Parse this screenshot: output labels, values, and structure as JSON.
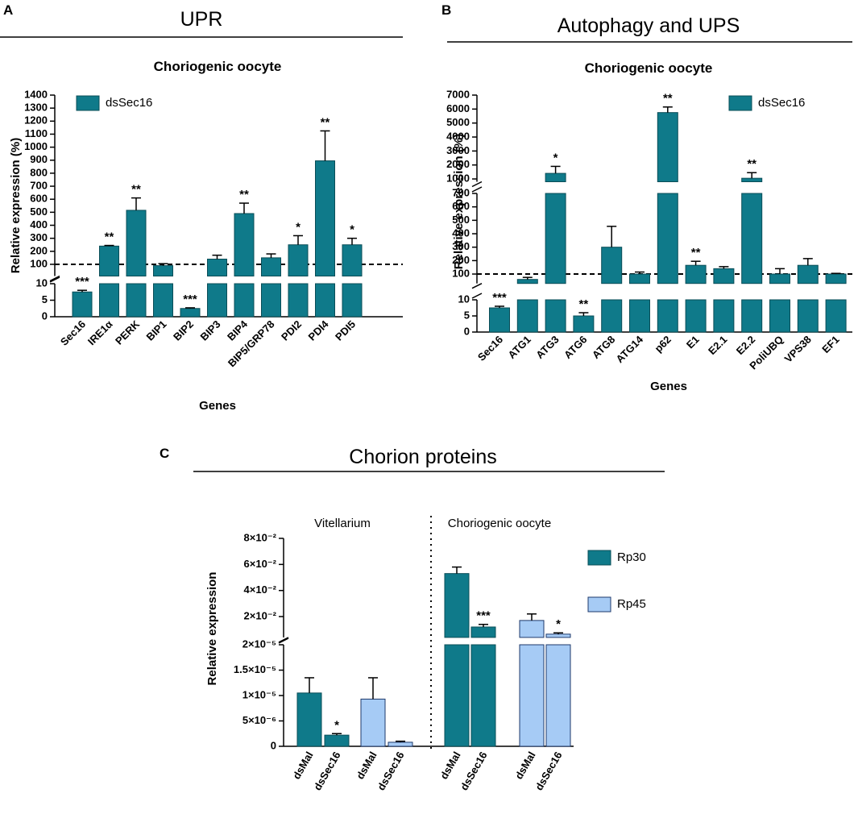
{
  "chart_data": [
    {
      "type": "bar",
      "panel_label": "A",
      "header": "UPR",
      "title": "Choriogenic oocyte",
      "ylabel": "Relative expression (%)",
      "xlabel": "Genes",
      "categories": [
        "Sec16",
        "IRE1α",
        "PERK",
        "BIP1",
        "BIP2",
        "BIP3",
        "BIP4",
        "BIP5/GRP78",
        "PDI2",
        "PDI4",
        "PDI5"
      ],
      "series": [
        {
          "name": "dsSec16",
          "color": "#0f7a8a",
          "values": [
            7.5,
            240,
            515,
            90,
            2.5,
            140,
            490,
            150,
            250,
            895,
            250
          ],
          "errors": [
            0.5,
            5,
            95,
            15,
            0.2,
            30,
            80,
            30,
            70,
            230,
            50
          ]
        }
      ],
      "significance": [
        [
          "***",
          "**",
          "**",
          null,
          "***",
          null,
          "**",
          null,
          "*",
          "**",
          "*"
        ]
      ],
      "axis_segments": [
        {
          "ylim": [
            0,
            10
          ],
          "yticks": [
            0,
            5,
            10
          ]
        },
        {
          "ylim": [
            10,
            1400
          ],
          "yticks": [
            100,
            200,
            300,
            400,
            500,
            600,
            700,
            800,
            900,
            1000,
            1100,
            1200,
            1300,
            1400
          ]
        }
      ],
      "reference_line": 100
    },
    {
      "type": "bar",
      "panel_label": "B",
      "header": "Autophagy and UPS",
      "title": "Choriogenic oocyte",
      "ylabel": "Relative expression (%)",
      "xlabel": "Genes",
      "categories": [
        "Sec16",
        "ATG1",
        "ATG3",
        "ATG6",
        "ATG8",
        "ATG14",
        "p62",
        "E1",
        "E2.1",
        "E2.2",
        "PoliUBQ",
        "VPS38",
        "EF1"
      ],
      "series": [
        {
          "name": "dsSec16",
          "color": "#0f7a8a",
          "values": [
            7.5,
            60,
            1400,
            5,
            300,
            100,
            5750,
            165,
            140,
            1050,
            100,
            165,
            100
          ],
          "errors": [
            0.5,
            15,
            500,
            1,
            155,
            15,
            400,
            30,
            15,
            400,
            40,
            50,
            5
          ]
        }
      ],
      "significance": [
        [
          "***",
          null,
          "*",
          "**",
          null,
          null,
          "**",
          "**",
          null,
          "**",
          null,
          null,
          null
        ]
      ],
      "axis_segments": [
        {
          "ylim": [
            0,
            10
          ],
          "yticks": [
            0,
            5,
            10
          ]
        },
        {
          "ylim": [
            30,
            700
          ],
          "yticks": [
            100,
            200,
            300,
            400,
            500,
            600,
            700
          ]
        },
        {
          "ylim": [
            800,
            7000
          ],
          "yticks": [
            1000,
            2000,
            3000,
            4000,
            5000,
            6000,
            7000
          ]
        }
      ],
      "reference_line": 100
    },
    {
      "type": "bar",
      "panel_label": "C",
      "header": "Chorion proteins",
      "ylabel": "Relative expression",
      "regions": [
        "Vitellarium",
        "Choriogenic oocyte"
      ],
      "categories": [
        "dsMal",
        "dsSec16",
        "dsMal",
        "dsSec16",
        "dsMal",
        "dsSec16",
        "dsMal",
        "dsSec16"
      ],
      "series": [
        {
          "name": "Rp30",
          "color": "#0f7a8a",
          "values": [
            1.05e-05,
            2.2e-06,
            null,
            null,
            0.053,
            0.012,
            null,
            null
          ],
          "errors": [
            3e-06,
            3e-07,
            null,
            null,
            0.005,
            0.002,
            null,
            null
          ]
        },
        {
          "name": "Rp45",
          "color": "#a6cbf5",
          "values": [
            null,
            null,
            9.3e-06,
            8e-07,
            null,
            null,
            0.017,
            0.0065
          ],
          "errors": [
            null,
            null,
            4.2e-06,
            2e-07,
            null,
            null,
            0.005,
            0.001
          ]
        }
      ],
      "significance": [
        [
          null,
          "*",
          null,
          null,
          null,
          "***",
          null,
          null
        ],
        [
          null,
          null,
          null,
          null,
          null,
          null,
          null,
          "*"
        ]
      ],
      "axis_segments": [
        {
          "ylim": [
            0,
            2e-05
          ],
          "yticks": [
            0,
            {
              "value": 5e-06,
              "label": "5×10⁻⁶"
            },
            {
              "value": 1e-05,
              "label": "1×10⁻⁵"
            },
            {
              "value": 1.5e-05,
              "label": "1.5×10⁻⁵"
            },
            {
              "value": 2e-05,
              "label": "2×10⁻⁵"
            }
          ]
        },
        {
          "ylim": [
            0.004,
            0.08
          ],
          "yticks": [
            {
              "value": 0.02,
              "label": "2×10⁻²"
            },
            {
              "value": 0.04,
              "label": "4×10⁻²"
            },
            {
              "value": 0.06,
              "label": "6×10⁻²"
            },
            {
              "value": 0.08,
              "label": "8×10⁻²"
            }
          ]
        }
      ]
    }
  ]
}
